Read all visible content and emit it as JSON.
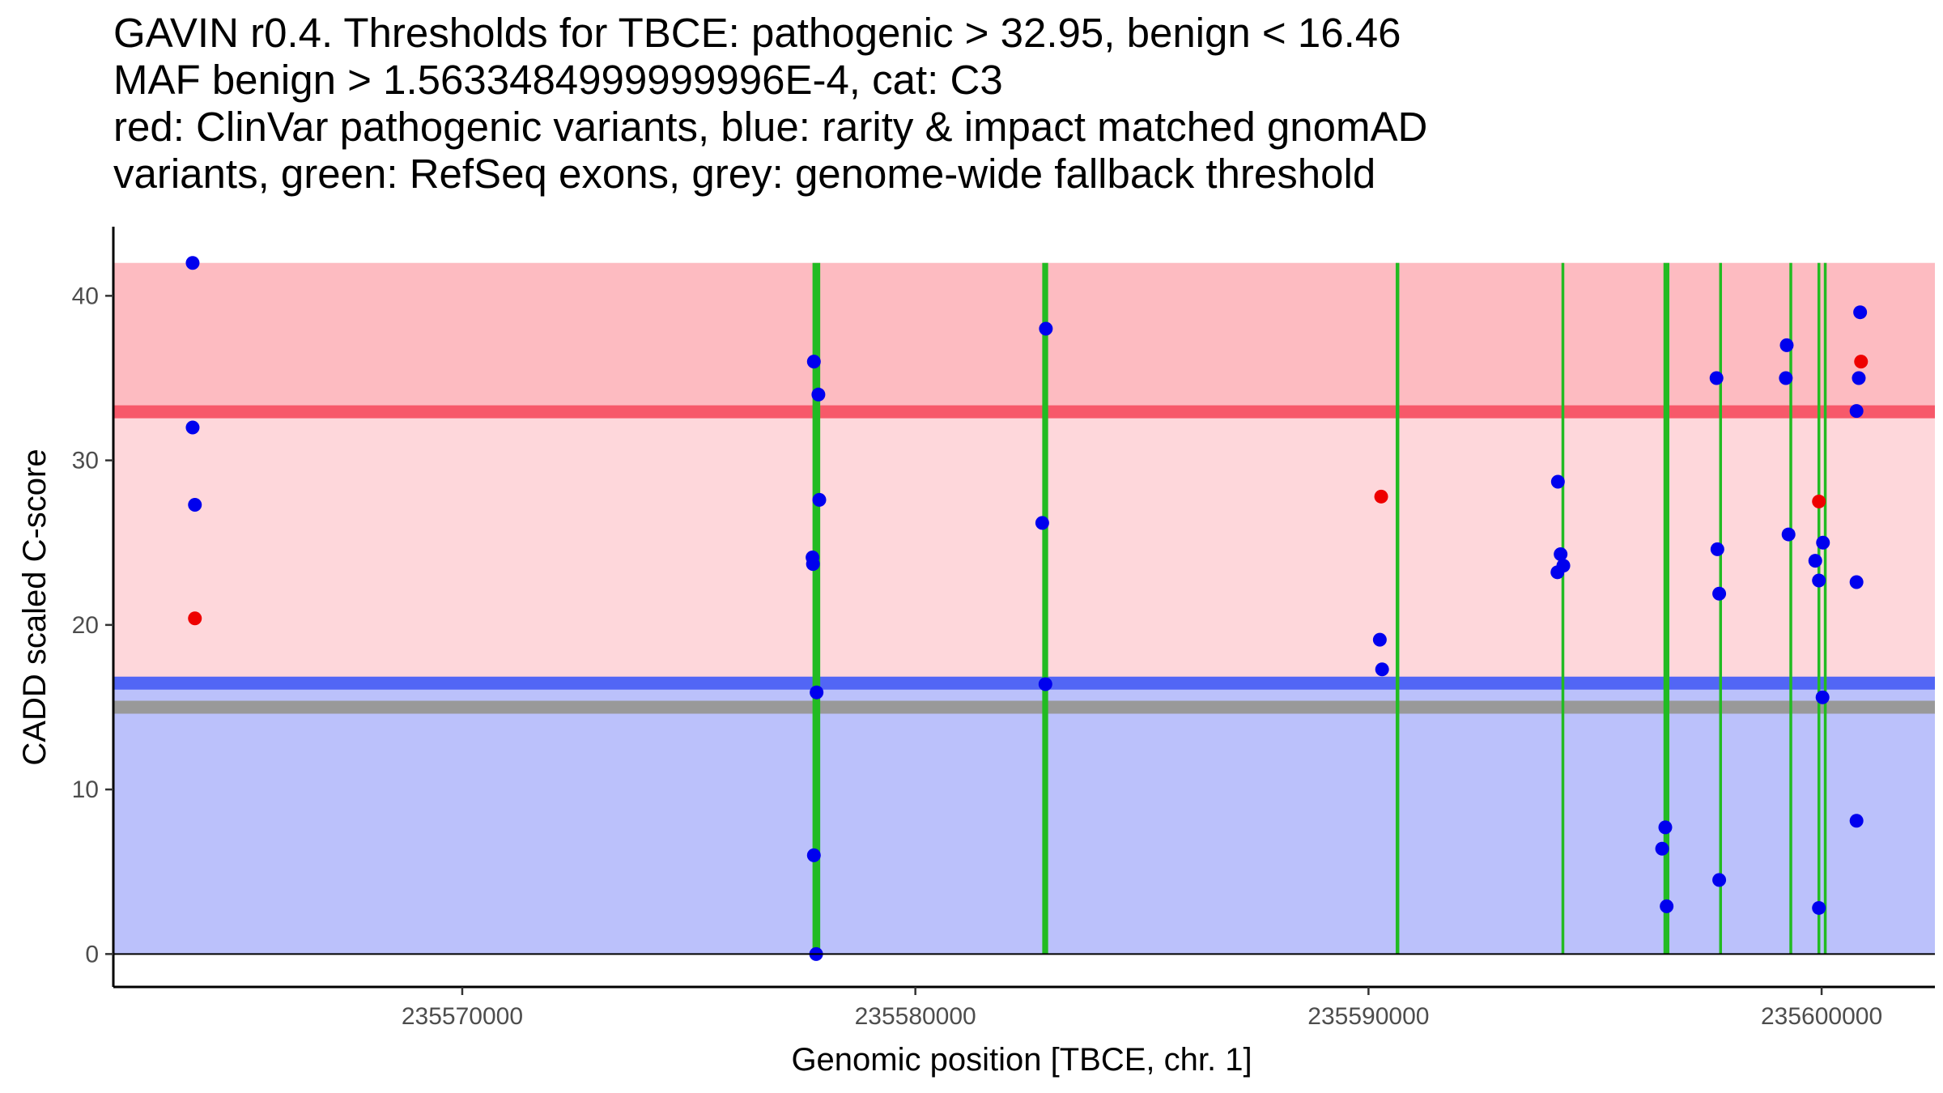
{
  "chart_data": {
    "type": "scatter",
    "title_lines": [
      "GAVIN r0.4. Thresholds for TBCE: pathogenic > 32.95, benign < 16.46",
      "MAF benign > 1.5633484999999996E-4, cat: C3",
      "red: ClinVar pathogenic variants, blue: rarity & impact matched gnomAD",
      "variants, green: RefSeq exons, grey: genome-wide fallback threshold"
    ],
    "xlabel": "Genomic position [TBCE, chr. 1]",
    "ylabel": "CADD scaled C-score",
    "xlim": [
      235562300,
      235602500
    ],
    "ylim": [
      -2.0,
      44.2
    ],
    "xticks": [
      235570000,
      235580000,
      235590000,
      235600000
    ],
    "yticks": [
      0,
      10,
      20,
      30,
      40
    ],
    "thresholds": {
      "pathogenic": 32.95,
      "benign": 16.46,
      "fallback": 15.0
    },
    "regions": [
      {
        "name": "pathogenic-zone",
        "y0": 32.95,
        "y1": 42.0,
        "color": "#fdbbc1"
      },
      {
        "name": "intermediate-zone",
        "y0": 16.46,
        "y1": 32.95,
        "color": "#fed7db"
      },
      {
        "name": "benign-zone",
        "y0": 0.0,
        "y1": 16.46,
        "color": "#bbc1fb"
      }
    ],
    "exons": [
      {
        "start": 235577730,
        "end": 235577900
      },
      {
        "start": 235582800,
        "end": 235582930
      },
      {
        "start": 235590600,
        "end": 235590680
      },
      {
        "start": 235594260,
        "end": 235594320
      },
      {
        "start": 235596510,
        "end": 235596640
      },
      {
        "start": 235597740,
        "end": 235597800
      },
      {
        "start": 235599290,
        "end": 235599350
      },
      {
        "start": 235599910,
        "end": 235599970
      },
      {
        "start": 235600050,
        "end": 235600110
      }
    ],
    "series": [
      {
        "name": "ClinVar pathogenic",
        "color": "#ee0000",
        "points": [
          {
            "x": 235564100,
            "y": 20.4
          },
          {
            "x": 235590280,
            "y": 27.8
          },
          {
            "x": 235599940,
            "y": 27.5
          },
          {
            "x": 235600870,
            "y": 36.0
          }
        ]
      },
      {
        "name": "gnomAD",
        "color": "#0000ee",
        "points": [
          {
            "x": 235564050,
            "y": 42.0
          },
          {
            "x": 235564050,
            "y": 32.0
          },
          {
            "x": 235564100,
            "y": 27.3
          },
          {
            "x": 235577760,
            "y": 36.0
          },
          {
            "x": 235577860,
            "y": 34.0
          },
          {
            "x": 235577880,
            "y": 27.6
          },
          {
            "x": 235577730,
            "y": 24.1
          },
          {
            "x": 235577740,
            "y": 23.7
          },
          {
            "x": 235577820,
            "y": 15.9
          },
          {
            "x": 235577760,
            "y": 6.0
          },
          {
            "x": 235577810,
            "y": 0.0
          },
          {
            "x": 235582880,
            "y": 38.0
          },
          {
            "x": 235582800,
            "y": 26.2
          },
          {
            "x": 235582870,
            "y": 16.4
          },
          {
            "x": 235590250,
            "y": 19.1
          },
          {
            "x": 235590300,
            "y": 17.3
          },
          {
            "x": 235594180,
            "y": 28.7
          },
          {
            "x": 235594240,
            "y": 24.3
          },
          {
            "x": 235594170,
            "y": 23.2
          },
          {
            "x": 235594300,
            "y": 23.6
          },
          {
            "x": 235596550,
            "y": 7.7
          },
          {
            "x": 235596480,
            "y": 6.4
          },
          {
            "x": 235596580,
            "y": 2.9
          },
          {
            "x": 235597680,
            "y": 35.0
          },
          {
            "x": 235597700,
            "y": 24.6
          },
          {
            "x": 235597740,
            "y": 21.9
          },
          {
            "x": 235597740,
            "y": 4.5
          },
          {
            "x": 235599230,
            "y": 37.0
          },
          {
            "x": 235599210,
            "y": 35.0
          },
          {
            "x": 235599270,
            "y": 25.5
          },
          {
            "x": 235599860,
            "y": 23.9
          },
          {
            "x": 235600030,
            "y": 25.0
          },
          {
            "x": 235599940,
            "y": 22.7
          },
          {
            "x": 235600020,
            "y": 15.6
          },
          {
            "x": 235599940,
            "y": 2.8
          },
          {
            "x": 235600850,
            "y": 39.0
          },
          {
            "x": 235600820,
            "y": 35.0
          },
          {
            "x": 235600770,
            "y": 33.0
          },
          {
            "x": 235600770,
            "y": 22.6
          },
          {
            "x": 235600770,
            "y": 8.1
          }
        ]
      }
    ]
  }
}
